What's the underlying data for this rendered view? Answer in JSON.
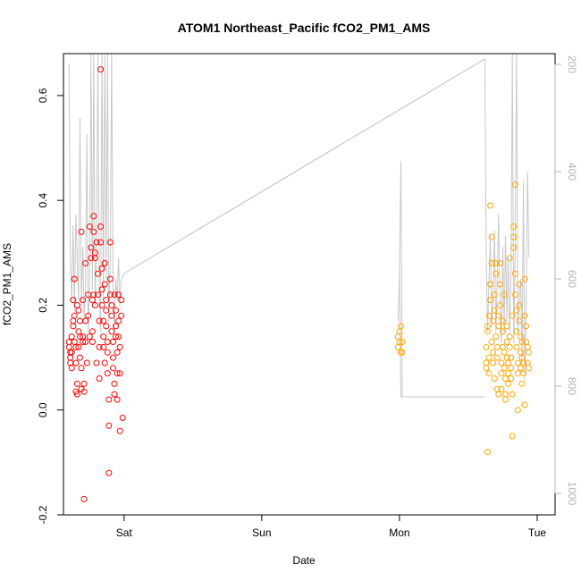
{
  "chart_data": {
    "type": "scatter",
    "title": "ATOM1 Northeast_Pacific fCO2_PM1_AMS",
    "xlabel": "Date",
    "ylabel": "fCO2_PM1_AMS",
    "x_ticks": [
      "Sat",
      "Sun",
      "Mon",
      "Tue"
    ],
    "x_tick_values": [
      0,
      1,
      2,
      3
    ],
    "xlim": [
      -0.44,
      3.13
    ],
    "ylim": [
      -0.2,
      0.68
    ],
    "y_ticks": [
      -0.2,
      0.0,
      0.2,
      0.4,
      0.6
    ],
    "y_tick_labels": [
      "-0.2",
      "0.0",
      "0.2",
      "0.4",
      "0.6"
    ],
    "y2_lim": [
      1040,
      180
    ],
    "y2_ticks": [
      200,
      400,
      600,
      800,
      1000
    ],
    "y2_tick_labels": [
      "200",
      "400",
      "600",
      "800",
      "1000"
    ],
    "y2_reversed": true,
    "grid": false,
    "colors": {
      "red_series": "#ff0000",
      "orange_series": "#ffa500",
      "line": "#c8c8c8",
      "axis": "#000000",
      "right_axis": "#b3b3b3"
    },
    "series": [
      {
        "color": "red",
        "points": [
          [
            -0.4,
            0.13
          ],
          [
            -0.4,
            0.12
          ],
          [
            -0.39,
            0.11
          ],
          [
            -0.39,
            0.1
          ],
          [
            -0.39,
            0.09
          ],
          [
            -0.38,
            0.08
          ],
          [
            -0.38,
            0.11
          ],
          [
            -0.38,
            0.14
          ],
          [
            -0.37,
            0.16
          ],
          [
            -0.37,
            0.17
          ],
          [
            -0.37,
            0.21
          ],
          [
            -0.36,
            0.25
          ],
          [
            -0.36,
            0.18
          ],
          [
            -0.36,
            0.13
          ],
          [
            -0.35,
            0.12
          ],
          [
            -0.35,
            0.09
          ],
          [
            -0.35,
            0.035
          ],
          [
            -0.34,
            0.03
          ],
          [
            -0.34,
            0.05
          ],
          [
            -0.34,
            0.2
          ],
          [
            -0.33,
            0.19
          ],
          [
            -0.33,
            0.15
          ],
          [
            -0.33,
            0.12
          ],
          [
            -0.32,
            0.14
          ],
          [
            -0.32,
            0.17
          ],
          [
            -0.32,
            0.1
          ],
          [
            -0.31,
            0.08
          ],
          [
            -0.31,
            0.04
          ],
          [
            -0.31,
            0.34
          ],
          [
            -0.3,
            0.21
          ],
          [
            -0.3,
            0.13
          ],
          [
            -0.3,
            0.14
          ],
          [
            -0.29,
            0.05
          ],
          [
            -0.29,
            0.035
          ],
          [
            -0.29,
            -0.17
          ],
          [
            -0.28,
            0.28
          ],
          [
            -0.28,
            0.17
          ],
          [
            -0.28,
            0.13
          ],
          [
            -0.27,
            0.09
          ],
          [
            -0.26,
            0.22
          ],
          [
            -0.26,
            0.18
          ],
          [
            -0.25,
            0.14
          ],
          [
            -0.25,
            0.35
          ],
          [
            -0.24,
            0.31
          ],
          [
            -0.24,
            0.29
          ],
          [
            -0.23,
            0.21
          ],
          [
            -0.23,
            0.15
          ],
          [
            -0.23,
            0.13
          ],
          [
            -0.22,
            0.34
          ],
          [
            -0.22,
            0.37
          ],
          [
            -0.22,
            0.22
          ],
          [
            -0.21,
            0.29
          ],
          [
            -0.21,
            0.3
          ],
          [
            -0.21,
            0.2
          ],
          [
            -0.2,
            0.09
          ],
          [
            -0.2,
            0.32
          ],
          [
            -0.19,
            0.26
          ],
          [
            -0.19,
            0.22
          ],
          [
            -0.18,
            0.17
          ],
          [
            -0.18,
            0.12
          ],
          [
            -0.18,
            0.06
          ],
          [
            -0.17,
            0.65
          ],
          [
            -0.17,
            0.35
          ],
          [
            -0.17,
            0.32
          ],
          [
            -0.16,
            0.27
          ],
          [
            -0.16,
            0.23
          ],
          [
            -0.16,
            0.2
          ],
          [
            -0.15,
            0.17
          ],
          [
            -0.15,
            0.14
          ],
          [
            -0.15,
            0.12
          ],
          [
            -0.14,
            0.09
          ],
          [
            -0.14,
            0.28
          ],
          [
            -0.14,
            0.24
          ],
          [
            -0.13,
            0.21
          ],
          [
            -0.13,
            0.19
          ],
          [
            -0.13,
            0.16
          ],
          [
            -0.12,
            0.13
          ],
          [
            -0.12,
            0.11
          ],
          [
            -0.12,
            0.07
          ],
          [
            -0.11,
            0.02
          ],
          [
            -0.11,
            -0.03
          ],
          [
            -0.11,
            -0.12
          ],
          [
            -0.1,
            0.32
          ],
          [
            -0.1,
            0.25
          ],
          [
            -0.1,
            0.22
          ],
          [
            -0.09,
            0.2
          ],
          [
            -0.09,
            0.18
          ],
          [
            -0.09,
            0.15
          ],
          [
            -0.08,
            0.13
          ],
          [
            -0.08,
            0.1
          ],
          [
            -0.08,
            0.08
          ],
          [
            -0.07,
            0.05
          ],
          [
            -0.07,
            0.03
          ],
          [
            -0.07,
            0.22
          ],
          [
            -0.06,
            0.19
          ],
          [
            -0.06,
            0.16
          ],
          [
            -0.06,
            0.14
          ],
          [
            -0.05,
            0.11
          ],
          [
            -0.05,
            0.07
          ],
          [
            -0.05,
            0.02
          ],
          [
            -0.04,
            0.22
          ],
          [
            -0.04,
            0.17
          ],
          [
            -0.04,
            0.14
          ],
          [
            -0.03,
            0.12
          ],
          [
            -0.03,
            0.07
          ],
          [
            -0.03,
            -0.04
          ],
          [
            -0.02,
            0.21
          ],
          [
            -0.02,
            0.18
          ],
          [
            -0.01,
            -0.015
          ]
        ]
      },
      {
        "color": "orange",
        "points": [
          [
            1.99,
            0.12
          ],
          [
            1.99,
            0.14
          ],
          [
            2.0,
            0.13
          ],
          [
            2.0,
            0.15
          ],
          [
            2.01,
            0.16
          ],
          [
            2.01,
            0.11
          ],
          [
            2.02,
            0.11
          ],
          [
            2.02,
            0.13
          ],
          [
            2.63,
            0.08
          ],
          [
            2.63,
            0.12
          ],
          [
            2.63,
            0.09
          ],
          [
            2.64,
            0.15
          ],
          [
            2.64,
            0.16
          ],
          [
            2.64,
            -0.08
          ],
          [
            2.65,
            0.1
          ],
          [
            2.65,
            0.07
          ],
          [
            2.65,
            0.18
          ],
          [
            2.66,
            0.21
          ],
          [
            2.66,
            0.24
          ],
          [
            2.66,
            0.39
          ],
          [
            2.67,
            0.28
          ],
          [
            2.67,
            0.33
          ],
          [
            2.67,
            0.13
          ],
          [
            2.68,
            0.11
          ],
          [
            2.68,
            0.09
          ],
          [
            2.68,
            0.17
          ],
          [
            2.69,
            0.19
          ],
          [
            2.69,
            0.22
          ],
          [
            2.69,
            0.06
          ],
          [
            2.7,
            0.28
          ],
          [
            2.7,
            0.26
          ],
          [
            2.7,
            0.14
          ],
          [
            2.71,
            0.12
          ],
          [
            2.71,
            0.1
          ],
          [
            2.71,
            0.04
          ],
          [
            2.72,
            0.03
          ],
          [
            2.72,
            0.16
          ],
          [
            2.72,
            0.18
          ],
          [
            2.73,
            0.2
          ],
          [
            2.73,
            0.28
          ],
          [
            2.73,
            0.24
          ],
          [
            2.74,
            0.09
          ],
          [
            2.74,
            0.07
          ],
          [
            2.74,
            0.04
          ],
          [
            2.75,
            0.12
          ],
          [
            2.75,
            0.15
          ],
          [
            2.75,
            0.17
          ],
          [
            2.76,
            0.22
          ],
          [
            2.76,
            0.11
          ],
          [
            2.76,
            0.08
          ],
          [
            2.77,
            0.06
          ],
          [
            2.77,
            0.03
          ],
          [
            2.77,
            0.02
          ],
          [
            2.78,
            0.1
          ],
          [
            2.78,
            0.13
          ],
          [
            2.78,
            0.16
          ],
          [
            2.79,
            0.09
          ],
          [
            2.79,
            0.07
          ],
          [
            2.79,
            0.05
          ],
          [
            2.8,
            0.12
          ],
          [
            2.8,
            0.29
          ],
          [
            2.8,
            0.14
          ],
          [
            2.81,
            0.1
          ],
          [
            2.81,
            0.08
          ],
          [
            2.81,
            0.06
          ],
          [
            2.82,
            0.18
          ],
          [
            2.82,
            -0.05
          ],
          [
            2.82,
            0.03
          ],
          [
            2.83,
            0.35
          ],
          [
            2.83,
            0.33
          ],
          [
            2.83,
            0.31
          ],
          [
            2.84,
            0.26
          ],
          [
            2.84,
            0.22
          ],
          [
            2.84,
            0.43
          ],
          [
            2.85,
            0.19
          ],
          [
            2.85,
            0.15
          ],
          [
            2.85,
            0.12
          ],
          [
            2.86,
            0.09
          ],
          [
            2.86,
            0.07
          ],
          [
            2.86,
            0.0
          ],
          [
            2.87,
            0.24
          ],
          [
            2.87,
            0.2
          ],
          [
            2.87,
            0.17
          ],
          [
            2.88,
            0.14
          ],
          [
            2.88,
            0.11
          ],
          [
            2.88,
            0.08
          ],
          [
            2.89,
            0.05
          ],
          [
            2.89,
            0.13
          ],
          [
            2.89,
            0.1
          ],
          [
            2.9,
            0.09
          ],
          [
            2.9,
            0.07
          ],
          [
            2.91,
            0.01
          ],
          [
            2.91,
            0.25
          ],
          [
            2.91,
            0.18
          ],
          [
            2.92,
            0.16
          ],
          [
            2.92,
            0.13
          ],
          [
            2.93,
            0.12
          ],
          [
            2.93,
            0.09
          ],
          [
            2.94,
            0.08
          ],
          [
            2.94,
            0.11
          ]
        ]
      }
    ],
    "line_series": {
      "axis": "right",
      "points": [
        [
          -0.4,
          200
        ],
        [
          -0.39,
          560
        ],
        [
          -0.38,
          640
        ],
        [
          -0.37,
          500
        ],
        [
          -0.36,
          660
        ],
        [
          -0.35,
          480
        ],
        [
          -0.34,
          560
        ],
        [
          -0.33,
          640
        ],
        [
          -0.32,
          300
        ],
        [
          -0.31,
          650
        ],
        [
          -0.3,
          540
        ],
        [
          -0.29,
          680
        ],
        [
          -0.28,
          620
        ],
        [
          -0.27,
          330
        ],
        [
          -0.26,
          700
        ],
        [
          -0.25,
          600
        ],
        [
          -0.24,
          180
        ],
        [
          -0.23,
          620
        ],
        [
          -0.22,
          180
        ],
        [
          -0.21,
          650
        ],
        [
          -0.2,
          540
        ],
        [
          -0.19,
          180
        ],
        [
          -0.18,
          620
        ],
        [
          -0.17,
          700
        ],
        [
          -0.16,
          180
        ],
        [
          -0.15,
          640
        ],
        [
          -0.14,
          180
        ],
        [
          -0.13,
          600
        ],
        [
          -0.12,
          180
        ],
        [
          -0.11,
          680
        ],
        [
          -0.1,
          560
        ],
        [
          -0.09,
          180
        ],
        [
          -0.08,
          620
        ],
        [
          -0.07,
          700
        ],
        [
          -0.06,
          600
        ],
        [
          -0.05,
          640
        ],
        [
          -0.04,
          560
        ],
        [
          -0.03,
          650
        ],
        [
          -0.02,
          600
        ],
        [
          0.0,
          590
        ],
        [
          2.62,
          190
        ],
        [
          2.63,
          560
        ],
        [
          2.64,
          700
        ],
        [
          2.65,
          600
        ],
        [
          2.66,
          520
        ],
        [
          2.67,
          690
        ],
        [
          2.68,
          640
        ],
        [
          2.69,
          510
        ],
        [
          2.7,
          700
        ],
        [
          2.71,
          600
        ],
        [
          2.72,
          480
        ],
        [
          2.73,
          660
        ],
        [
          2.74,
          720
        ],
        [
          2.75,
          540
        ],
        [
          2.76,
          700
        ],
        [
          2.77,
          520
        ],
        [
          2.78,
          680
        ],
        [
          2.79,
          560
        ],
        [
          2.8,
          700
        ],
        [
          2.81,
          600
        ],
        [
          2.82,
          180
        ],
        [
          2.83,
          720
        ],
        [
          2.84,
          560
        ],
        [
          2.85,
          180
        ],
        [
          2.86,
          700
        ],
        [
          2.87,
          640
        ],
        [
          2.88,
          600
        ],
        [
          2.89,
          760
        ],
        [
          2.9,
          420
        ],
        [
          2.91,
          790
        ],
        [
          2.92,
          660
        ],
        [
          2.93,
          400
        ],
        [
          2.94,
          560
        ]
      ],
      "connectors": [
        [
          [
            0.0,
            590
          ],
          [
            2.62,
            190
          ]
        ],
        [
          [
            2.0,
            590
          ],
          [
            2.01,
            820
          ],
          [
            2.62,
            820
          ]
        ],
        [
          [
            1.99,
            680
          ],
          [
            2.0,
            590
          ],
          [
            2.01,
            380
          ],
          [
            2.02,
            820
          ]
        ]
      ]
    }
  }
}
